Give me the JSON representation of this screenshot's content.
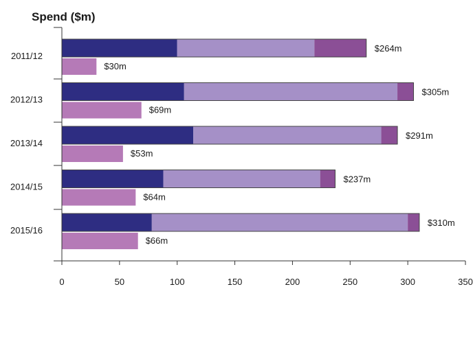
{
  "chart_data": {
    "type": "bar",
    "orientation": "horizontal",
    "stacked": true,
    "title": "Spend ($m)",
    "xlabel": "",
    "ylabel": "",
    "xlim": [
      0,
      350
    ],
    "xticks": [
      0,
      50,
      100,
      150,
      200,
      250,
      300,
      350
    ],
    "grid": false,
    "legend": "none",
    "categories": [
      "2011/12",
      "2012/13",
      "2013/14",
      "2014/15",
      "2015/16"
    ],
    "stacked_series": [
      {
        "color": "#2e2d82",
        "values": [
          100,
          106,
          114,
          88,
          78
        ]
      },
      {
        "color": "#a590c7",
        "values": [
          119,
          185,
          163,
          136,
          222
        ]
      },
      {
        "color": "#8b4f96",
        "values": [
          45,
          14,
          14,
          13,
          10
        ]
      }
    ],
    "stacked_totals": [
      264,
      305,
      291,
      237,
      310
    ],
    "stacked_total_labels": [
      "$264m",
      "$305m",
      "$291m",
      "$237m",
      "$310m"
    ],
    "second_series": {
      "color": "#b57ab7",
      "values": [
        30,
        69,
        53,
        64,
        66
      ],
      "labels": [
        "$30m",
        "$69m",
        "$53m",
        "$64m",
        "$66m"
      ]
    }
  }
}
